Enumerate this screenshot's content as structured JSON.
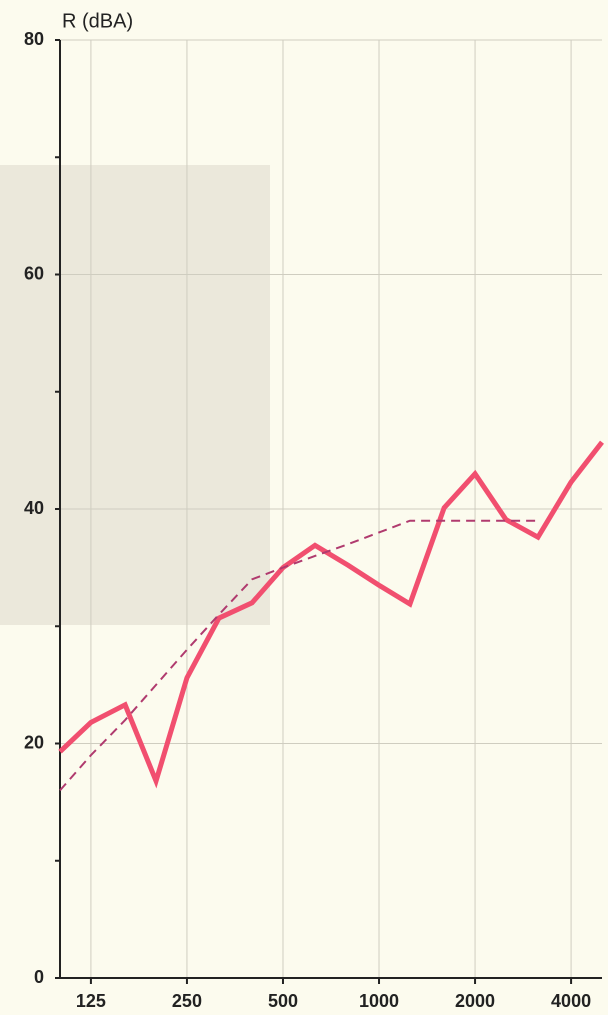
{
  "chart_data": {
    "type": "line",
    "y_label": "R (dBA)",
    "x": [
      100,
      125,
      160,
      200,
      250,
      315,
      400,
      500,
      630,
      800,
      1000,
      1250,
      1600,
      2000,
      2500,
      3150,
      4000,
      5000
    ],
    "series": [
      {
        "style": "solid",
        "color": "#f14f6f",
        "values": [
          19.3,
          21.8,
          23.3,
          16.8,
          25.6,
          30.7,
          32.0,
          35.0,
          36.9,
          35.2,
          33.5,
          31.9,
          40.1,
          43.0,
          39.1,
          37.6,
          42.3,
          45.7
        ]
      },
      {
        "style": "dashed",
        "color": "#b03a6e",
        "values": [
          16,
          19,
          22,
          25,
          28,
          31,
          34,
          35,
          36,
          37,
          38,
          39,
          39,
          39,
          39,
          39,
          null,
          null
        ]
      }
    ],
    "xscale": "log",
    "xlim": [
      100,
      5000
    ],
    "xticks": [
      125,
      250,
      500,
      1000,
      2000,
      4000
    ],
    "ylim": [
      0,
      80
    ],
    "yticks": [
      0,
      20,
      40,
      60,
      80
    ],
    "yminor": [
      10,
      30,
      50,
      70
    ],
    "grid": true
  }
}
